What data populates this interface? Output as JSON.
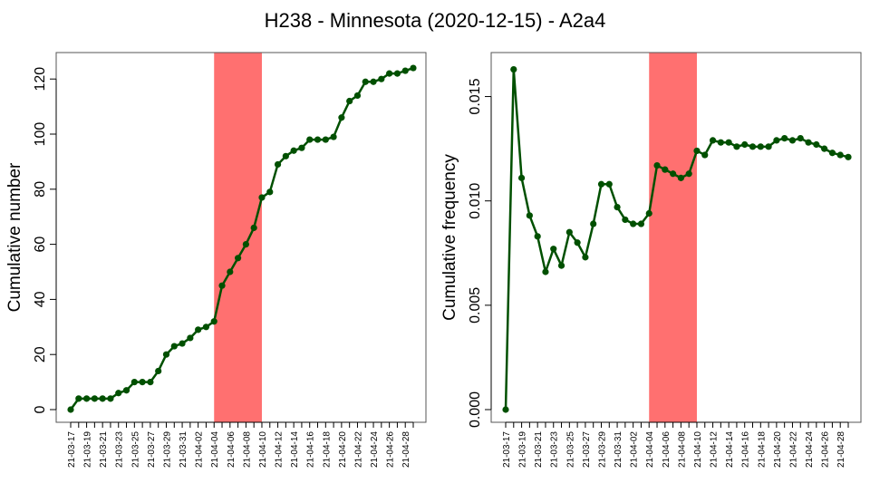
{
  "figure": {
    "title": "H238 - Minnesota (2020-12-15) - A2a4"
  },
  "chart_data": [
    {
      "type": "line",
      "ylabel": "Cumulative number",
      "xlabel": "",
      "ylim": [
        0,
        125
      ],
      "yticks": [
        0,
        20,
        40,
        60,
        80,
        100,
        120
      ],
      "ytick_labels": [
        "0",
        "20",
        "40",
        "60",
        "80",
        "100",
        "120"
      ],
      "x": [
        "21-03-17",
        "21-03-18",
        "21-03-19",
        "21-03-20",
        "21-03-21",
        "21-03-22",
        "21-03-23",
        "21-03-24",
        "21-03-25",
        "21-03-26",
        "21-03-27",
        "21-03-28",
        "21-03-29",
        "21-03-30",
        "21-03-31",
        "21-04-01",
        "21-04-02",
        "21-04-03",
        "21-04-04",
        "21-04-05",
        "21-04-06",
        "21-04-07",
        "21-04-08",
        "21-04-09",
        "21-04-10",
        "21-04-11",
        "21-04-12",
        "21-04-13",
        "21-04-14",
        "21-04-15",
        "21-04-16",
        "21-04-17",
        "21-04-18",
        "21-04-19",
        "21-04-20",
        "21-04-21",
        "21-04-22",
        "21-04-23",
        "21-04-24",
        "21-04-25",
        "21-04-26",
        "21-04-27",
        "21-04-28",
        "21-04-29"
      ],
      "xtick_labels": [
        "21-03-17",
        "21-03-19",
        "21-03-21",
        "21-03-23",
        "21-03-25",
        "21-03-27",
        "21-03-29",
        "21-03-31",
        "21-04-02",
        "21-04-04",
        "21-04-06",
        "21-04-08",
        "21-04-10",
        "21-04-12",
        "21-04-14",
        "21-04-16",
        "21-04-18",
        "21-04-20",
        "21-04-22",
        "21-04-24",
        "21-04-26",
        "21-04-28"
      ],
      "values": [
        0,
        4,
        4,
        4,
        4,
        4,
        6,
        7,
        10,
        10,
        10,
        14,
        20,
        23,
        24,
        26,
        29,
        30,
        32,
        45,
        50,
        55,
        60,
        66,
        77,
        79,
        89,
        92,
        94,
        95,
        98,
        98,
        98,
        99,
        106,
        112,
        114,
        119,
        119,
        120,
        122,
        122,
        123,
        124
      ],
      "highlight": {
        "start": "21-04-04",
        "end": "21-04-10",
        "color": "#ff7070"
      },
      "line_color": "#005000"
    },
    {
      "type": "line",
      "ylabel": "Cumulative frequency",
      "xlabel": "",
      "ylim": [
        0,
        0.0165
      ],
      "yticks": [
        0,
        0.005,
        0.01,
        0.015
      ],
      "ytick_labels": [
        "0.000",
        "0.005",
        "0.010",
        "0.015"
      ],
      "x": [
        "21-03-17",
        "21-03-18",
        "21-03-19",
        "21-03-20",
        "21-03-21",
        "21-03-22",
        "21-03-23",
        "21-03-24",
        "21-03-25",
        "21-03-26",
        "21-03-27",
        "21-03-28",
        "21-03-29",
        "21-03-30",
        "21-03-31",
        "21-04-01",
        "21-04-02",
        "21-04-03",
        "21-04-04",
        "21-04-05",
        "21-04-06",
        "21-04-07",
        "21-04-08",
        "21-04-09",
        "21-04-10",
        "21-04-11",
        "21-04-12",
        "21-04-13",
        "21-04-14",
        "21-04-15",
        "21-04-16",
        "21-04-17",
        "21-04-18",
        "21-04-19",
        "21-04-20",
        "21-04-21",
        "21-04-22",
        "21-04-23",
        "21-04-24",
        "21-04-25",
        "21-04-26",
        "21-04-27",
        "21-04-28",
        "21-04-29"
      ],
      "xtick_labels": [
        "21-03-17",
        "21-03-19",
        "21-03-21",
        "21-03-23",
        "21-03-25",
        "21-03-27",
        "21-03-29",
        "21-03-31",
        "21-04-02",
        "21-04-04",
        "21-04-06",
        "21-04-08",
        "21-04-10",
        "21-04-12",
        "21-04-14",
        "21-04-16",
        "21-04-18",
        "21-04-20",
        "21-04-22",
        "21-04-24",
        "21-04-26",
        "21-04-28"
      ],
      "values": [
        0,
        0.0163,
        0.0111,
        0.0093,
        0.0083,
        0.0066,
        0.0077,
        0.0069,
        0.0085,
        0.008,
        0.0073,
        0.0089,
        0.0108,
        0.0108,
        0.0097,
        0.0091,
        0.0089,
        0.0089,
        0.0094,
        0.0117,
        0.0115,
        0.0113,
        0.0111,
        0.0113,
        0.0124,
        0.0122,
        0.0129,
        0.0128,
        0.0128,
        0.0126,
        0.0127,
        0.0126,
        0.0126,
        0.0126,
        0.0129,
        0.013,
        0.0129,
        0.013,
        0.0128,
        0.0127,
        0.0125,
        0.0123,
        0.0122,
        0.0121
      ],
      "highlight": {
        "start": "21-04-04",
        "end": "21-04-10",
        "color": "#ff7070"
      },
      "line_color": "#005000"
    }
  ]
}
